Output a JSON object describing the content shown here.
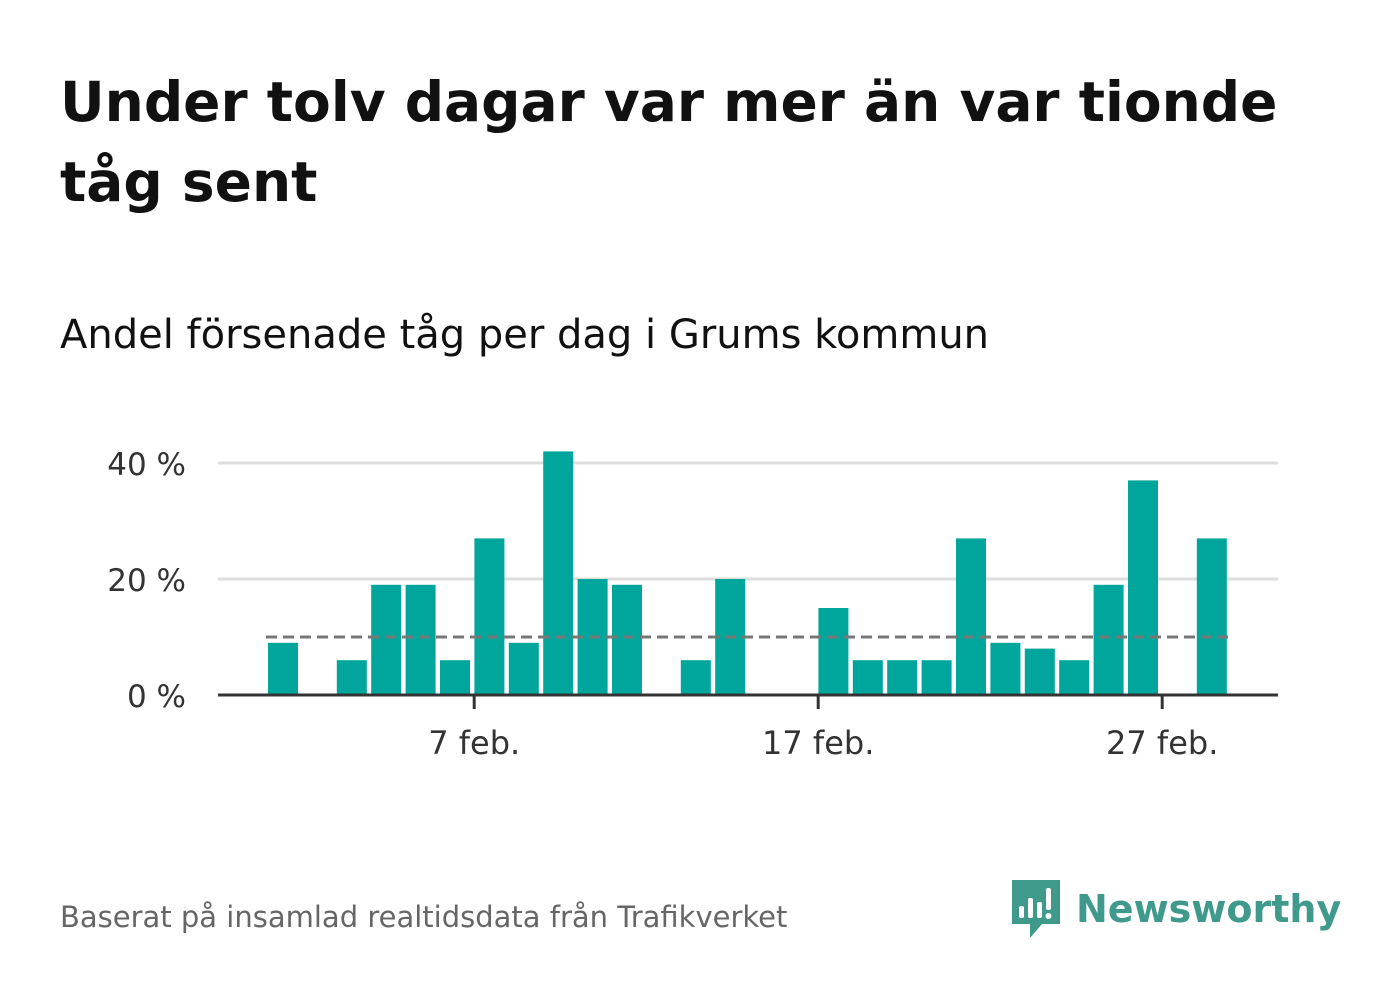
{
  "title": "Under tolv dagar var mer än var tionde tåg sent",
  "subtitle": "Andel försenade tåg per dag i Grums kommun",
  "footer": {
    "source": "Baserat på insamlad realtidsdata från Trafikverket",
    "brand": "Newsworthy",
    "brand_icon": "newsworthy-logo-icon"
  },
  "colors": {
    "bar": "#00a59b",
    "reference_line": "#777777",
    "grid": "#dddddd",
    "axis": "#333333",
    "brand": "#409a8c"
  },
  "chart_data": {
    "type": "bar",
    "x_type": "date",
    "categories": [
      "2024-02-01",
      "2024-02-02",
      "2024-02-03",
      "2024-02-04",
      "2024-02-05",
      "2024-02-06",
      "2024-02-07",
      "2024-02-08",
      "2024-02-09",
      "2024-02-10",
      "2024-02-11",
      "2024-02-12",
      "2024-02-13",
      "2024-02-14",
      "2024-02-15",
      "2024-02-16",
      "2024-02-17",
      "2024-02-18",
      "2024-02-19",
      "2024-02-20",
      "2024-02-21",
      "2024-02-22",
      "2024-02-23",
      "2024-02-24",
      "2024-02-25",
      "2024-02-26",
      "2024-02-27",
      "2024-02-28",
      "2024-02-29"
    ],
    "values": [
      9,
      0,
      6,
      19,
      19,
      6,
      27,
      9,
      42,
      20,
      19,
      0,
      6,
      20,
      0,
      0,
      15,
      6,
      6,
      6,
      27,
      9,
      8,
      6,
      19,
      37,
      0,
      27,
      null
    ],
    "reference_line": 10,
    "y_ticks": [
      0,
      20,
      40
    ],
    "y_tick_labels": [
      "0 %",
      "20 %",
      "40 %"
    ],
    "x_ticks": [
      "2024-02-07",
      "2024-02-17",
      "2024-02-27"
    ],
    "x_tick_labels": [
      "7 feb.",
      "17 feb.",
      "27 feb."
    ],
    "ylim": [
      0,
      40
    ],
    "grid": true,
    "xlabel": "",
    "ylabel": ""
  }
}
